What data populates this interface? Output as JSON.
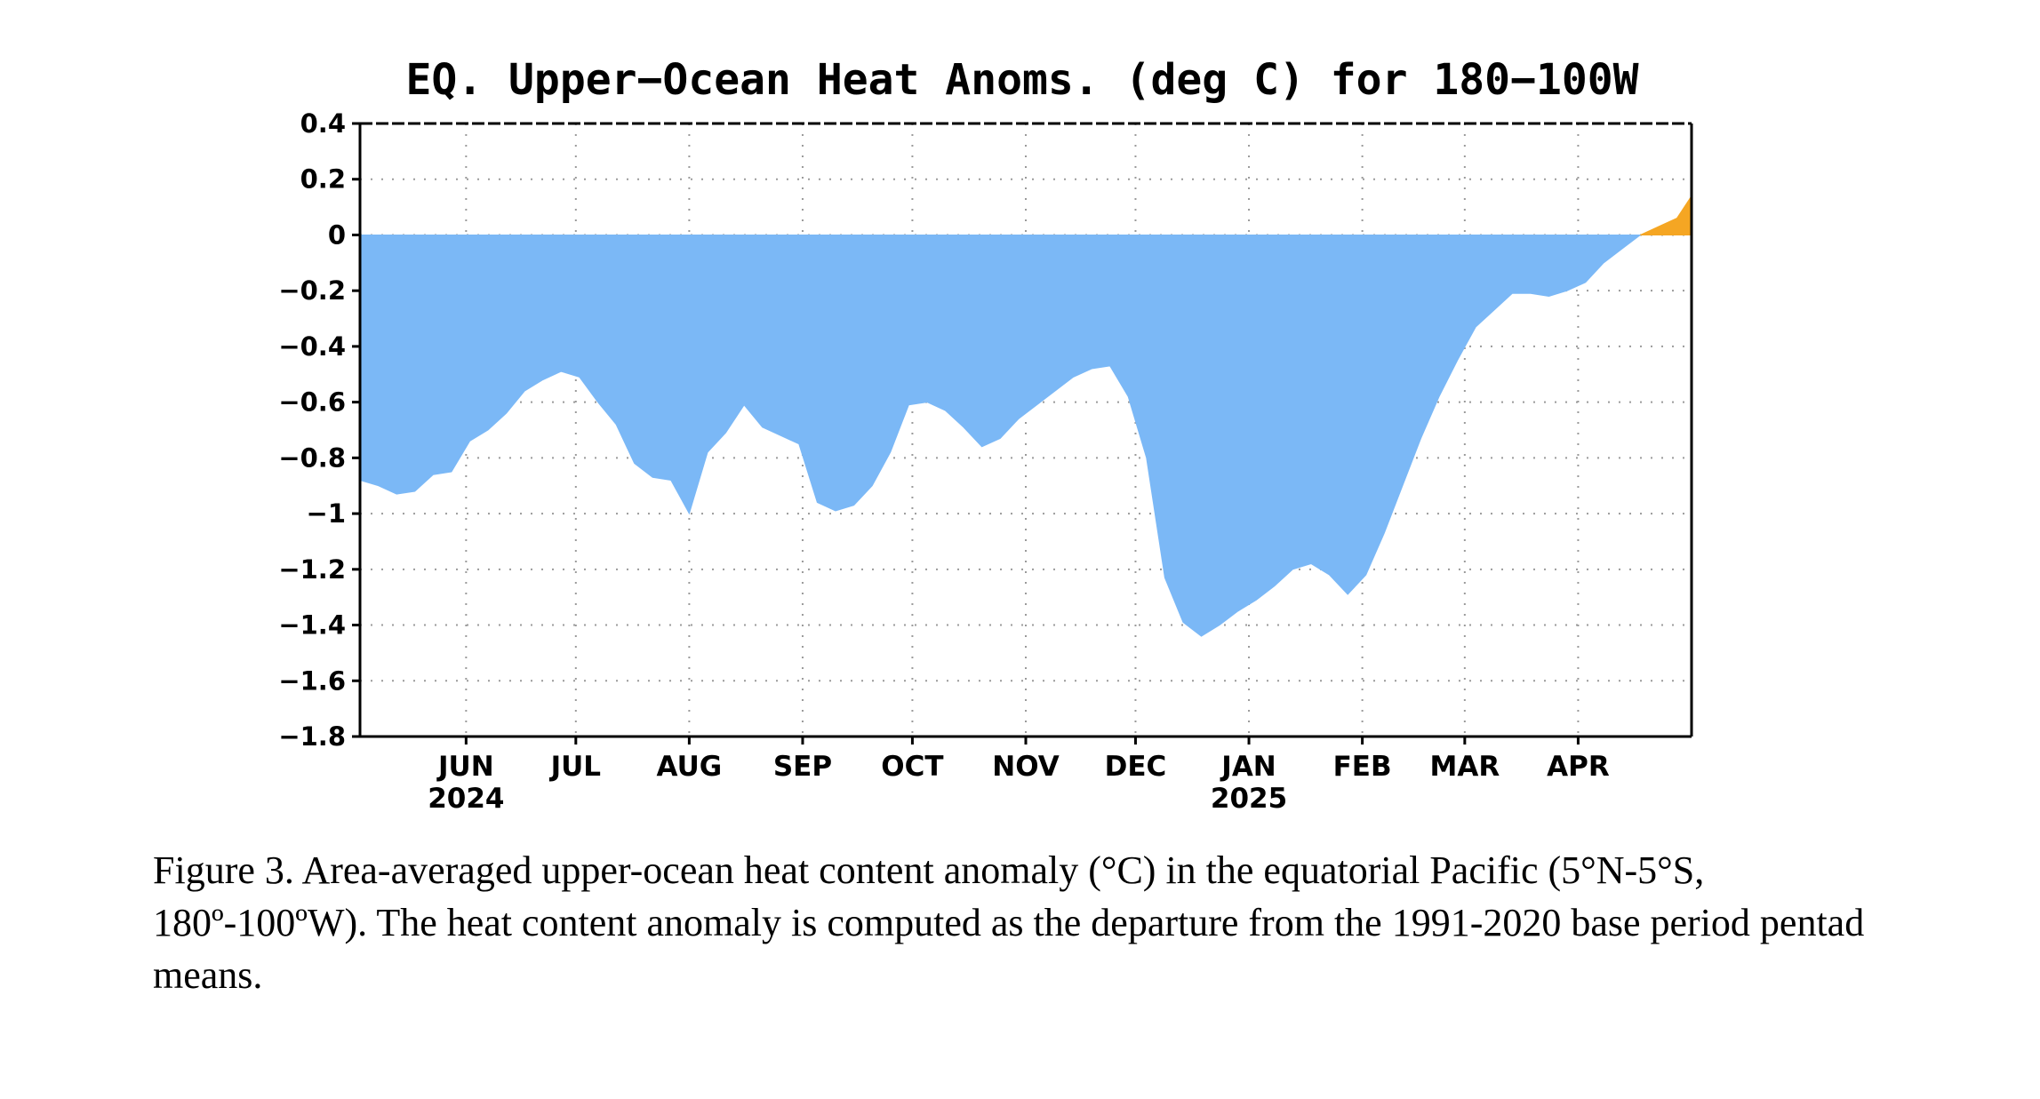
{
  "chart_data": {
    "type": "area",
    "title": "EQ. Upper−Ocean Heat Anoms. (deg C) for 180−100W",
    "ylim": [
      -1.8,
      0.4
    ],
    "y_ticks": [
      0.4,
      0.2,
      0,
      -0.2,
      -0.4,
      -0.6,
      -0.8,
      -1,
      -1.2,
      -1.4,
      -1.6,
      -1.8
    ],
    "y_tick_labels": [
      "0.4",
      "0.2",
      "0",
      "−0.2",
      "−0.4",
      "−0.6",
      "−0.8",
      "−1",
      "−1.2",
      "−1.4",
      "−1.6",
      "−1.8"
    ],
    "xlim": [
      "2024-05-03",
      "2025-05-02"
    ],
    "x_ticks": [
      {
        "date": "2024-06-01",
        "label": "JUN",
        "year": "2024"
      },
      {
        "date": "2024-07-01",
        "label": "JUL"
      },
      {
        "date": "2024-08-01",
        "label": "AUG"
      },
      {
        "date": "2024-09-01",
        "label": "SEP"
      },
      {
        "date": "2024-10-01",
        "label": "OCT"
      },
      {
        "date": "2024-11-01",
        "label": "NOV"
      },
      {
        "date": "2024-12-01",
        "label": "DEC"
      },
      {
        "date": "2025-01-01",
        "label": "JAN",
        "year": "2025"
      },
      {
        "date": "2025-02-01",
        "label": "FEB"
      },
      {
        "date": "2025-03-01",
        "label": "MAR"
      },
      {
        "date": "2025-04-01",
        "label": "APR"
      }
    ],
    "grid": true,
    "fill_colors": {
      "negative": "#7bb8f6",
      "positive": "#f5a623"
    },
    "series": [
      {
        "x": [
          "2024-05-03",
          "2024-05-08",
          "2024-05-13",
          "2024-05-18",
          "2024-05-23",
          "2024-05-28",
          "2024-06-02",
          "2024-06-07",
          "2024-06-12",
          "2024-06-17",
          "2024-06-22",
          "2024-06-27",
          "2024-07-02",
          "2024-07-07",
          "2024-07-12",
          "2024-07-17",
          "2024-07-22",
          "2024-07-27",
          "2024-08-01",
          "2024-08-06",
          "2024-08-11",
          "2024-08-16",
          "2024-08-21",
          "2024-08-26",
          "2024-08-31",
          "2024-09-05",
          "2024-09-10",
          "2024-09-15",
          "2024-09-20",
          "2024-09-25",
          "2024-09-30",
          "2024-10-05",
          "2024-10-10",
          "2024-10-15",
          "2024-10-20",
          "2024-10-25",
          "2024-10-30",
          "2024-11-04",
          "2024-11-09",
          "2024-11-14",
          "2024-11-19",
          "2024-11-24",
          "2024-11-29",
          "2024-12-04",
          "2024-12-09",
          "2024-12-14",
          "2024-12-19",
          "2024-12-24",
          "2024-12-29",
          "2025-01-03",
          "2025-01-08",
          "2025-01-13",
          "2025-01-18",
          "2025-01-23",
          "2025-01-28",
          "2025-02-02",
          "2025-02-07",
          "2025-02-12",
          "2025-02-17",
          "2025-02-22",
          "2025-02-27",
          "2025-03-04",
          "2025-03-09",
          "2025-03-14",
          "2025-03-19",
          "2025-03-24",
          "2025-03-29",
          "2025-04-03",
          "2025-04-08",
          "2025-04-13",
          "2025-04-18",
          "2025-04-23",
          "2025-04-28",
          "2025-05-02"
        ],
        "y": [
          -0.88,
          -0.9,
          -0.93,
          -0.92,
          -0.86,
          -0.85,
          -0.74,
          -0.7,
          -0.64,
          -0.56,
          -0.52,
          -0.49,
          -0.51,
          -0.6,
          -0.68,
          -0.82,
          -0.87,
          -0.88,
          -1.0,
          -0.78,
          -0.71,
          -0.61,
          -0.69,
          -0.72,
          -0.75,
          -0.96,
          -0.99,
          -0.97,
          -0.9,
          -0.78,
          -0.61,
          -0.6,
          -0.63,
          -0.69,
          -0.76,
          -0.73,
          -0.66,
          -0.61,
          -0.56,
          -0.51,
          -0.48,
          -0.47,
          -0.58,
          -0.8,
          -1.23,
          -1.39,
          -1.44,
          -1.4,
          -1.35,
          -1.31,
          -1.26,
          -1.2,
          -1.18,
          -1.22,
          -1.29,
          -1.22,
          -1.07,
          -0.9,
          -0.73,
          -0.58,
          -0.45,
          -0.33,
          -0.27,
          -0.21,
          -0.21,
          -0.22,
          -0.2,
          -0.17,
          -0.1,
          -0.05,
          0.0,
          0.03,
          0.06,
          0.14
        ]
      }
    ]
  },
  "caption": "Figure 3. Area-averaged upper-ocean heat content anomaly (°C) in the equatorial Pacific (5°N-5°S, 180º-100ºW). The heat content anomaly is computed as the departure from the 1991-2020 base period pentad means."
}
